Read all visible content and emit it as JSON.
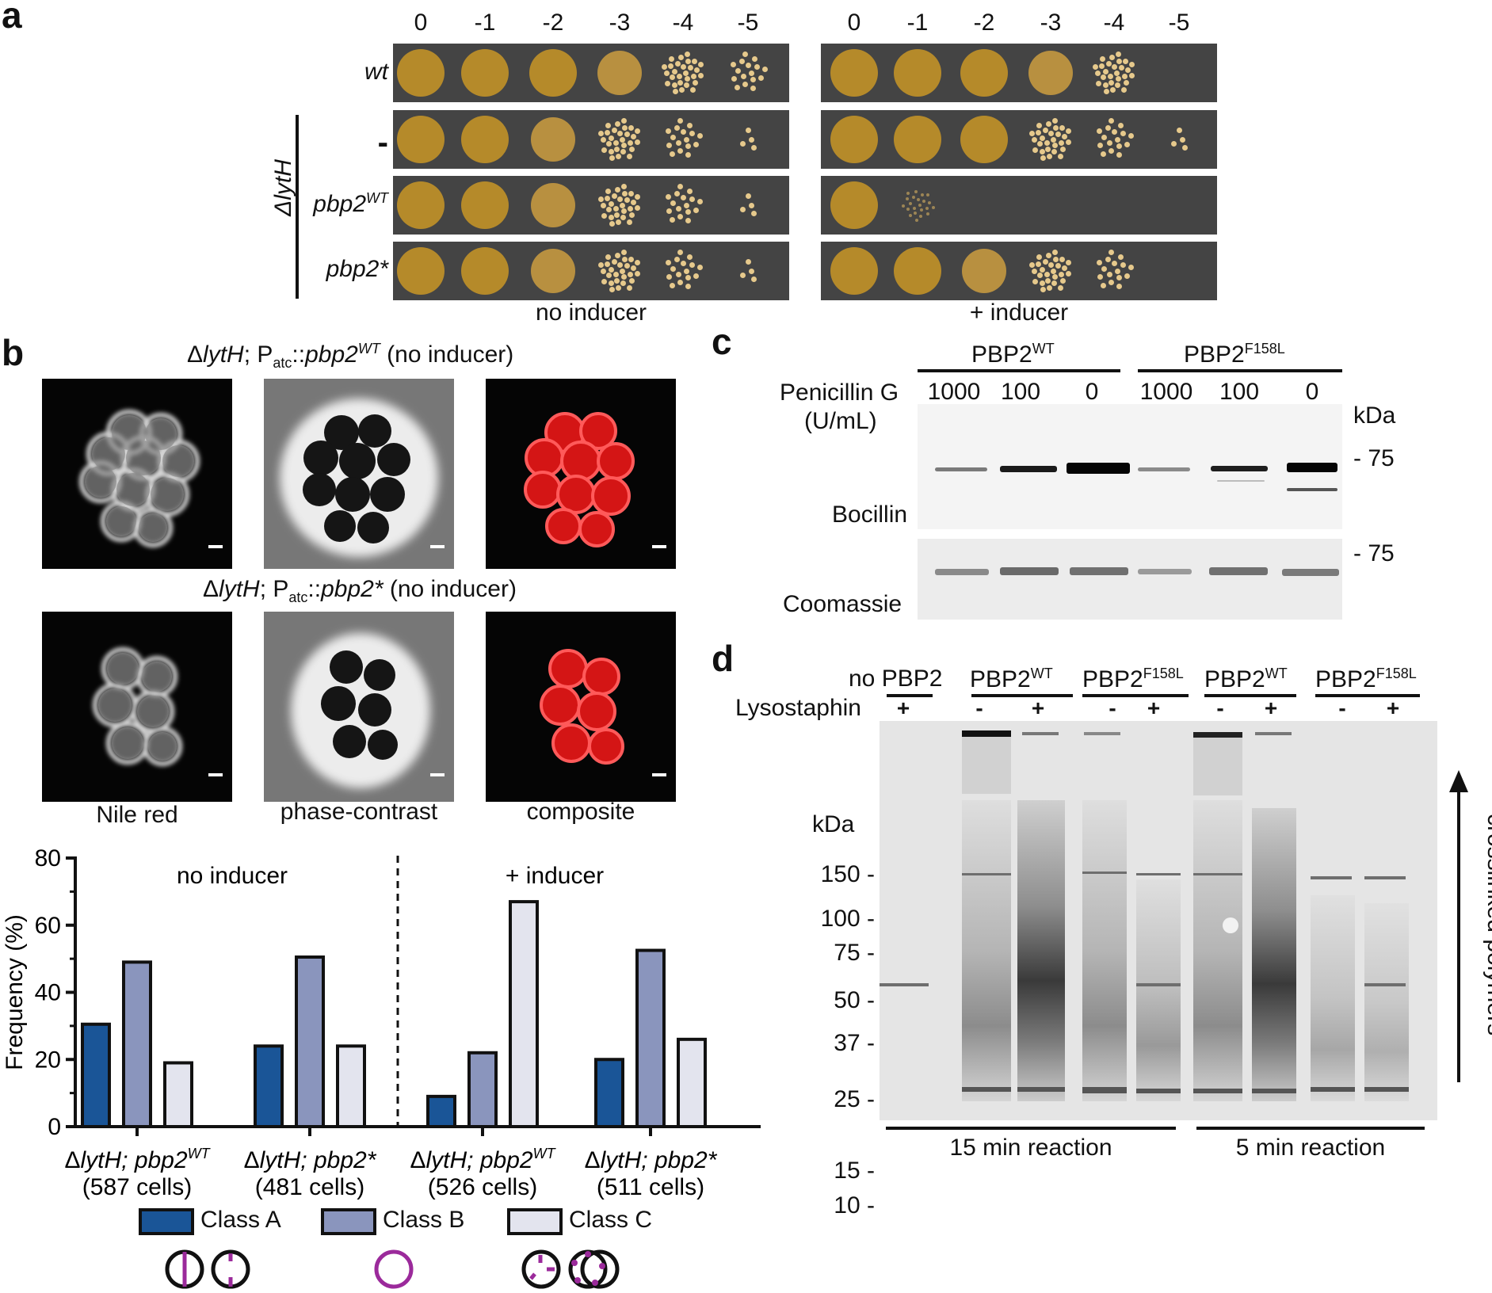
{
  "panel_a": {
    "label": "a",
    "dilutions": [
      "0",
      "-1",
      "-2",
      "-3",
      "-4",
      "-5"
    ],
    "rows": [
      {
        "text": "wt"
      },
      {
        "text": "-"
      },
      {
        "text": "pbp2",
        "sup": "WT"
      },
      {
        "text": "pbp2*"
      }
    ],
    "strain_group": "ΔlytH",
    "conditions": [
      "no inducer",
      "+ inducer"
    ]
  },
  "panel_b": {
    "label": "b",
    "titles": [
      {
        "pre": "Δ",
        "g1": "lytH",
        "mid": "; P",
        "sub": "atc",
        "sep": "::",
        "g2": "pbp2",
        "sup": "WT",
        "post": " (no inducer)"
      },
      {
        "pre": "Δ",
        "g1": "lytH",
        "mid": "; P",
        "sub": "atc",
        "sep": "::",
        "g2": "pbp2*",
        "sup": "",
        "post": " (no inducer)"
      }
    ],
    "image_captions": [
      "Nile red",
      "phase-contrast",
      "composite"
    ]
  },
  "chart_data": {
    "type": "bar",
    "ylabel": "Frequency (%)",
    "ylim": [
      0,
      80
    ],
    "yticks": [
      0,
      20,
      40,
      60,
      80
    ],
    "sections": [
      "no inducer",
      "+ inducer"
    ],
    "groups": [
      {
        "g": "ΔlytH; ",
        "gi": "pbp2",
        "sup": "WT",
        "cells": "(587 cells)"
      },
      {
        "g": "ΔlytH; ",
        "gi": "pbp2*",
        "sup": "",
        "cells": "(481 cells)"
      },
      {
        "g": "ΔlytH; ",
        "gi": "pbp2",
        "sup": "WT",
        "cells": "(526 cells)"
      },
      {
        "g": "ΔlytH; ",
        "gi": "pbp2*",
        "sup": "",
        "cells": "(511 cells)"
      }
    ],
    "series": [
      {
        "name": "Class A",
        "color": "#1a5597",
        "values": [
          30.5,
          24,
          9,
          20
        ]
      },
      {
        "name": "Class B",
        "color": "#8a95bd",
        "values": [
          49,
          50.5,
          22,
          52.5
        ]
      },
      {
        "name": "Class C",
        "color": "#e3e4ee",
        "values": [
          19,
          24,
          67,
          26
        ]
      }
    ]
  },
  "panel_c": {
    "label": "c",
    "proteins": [
      {
        "base": "PBP2",
        "sup": "WT"
      },
      {
        "base": "PBP2",
        "sup": "F158L"
      }
    ],
    "row_label_1": "Penicillin G",
    "row_label_2": "(U/mL)",
    "concentrations": [
      "1000",
      "100",
      "0",
      "1000",
      "100",
      "0"
    ],
    "unit": "kDa",
    "marker": "- 75",
    "bocillin_label": "Bocillin",
    "coomassie_label": "Coomassie"
  },
  "panel_d": {
    "label": "d",
    "groups": [
      {
        "pre": "no ",
        "base": "PBP2",
        "sup": ""
      },
      {
        "pre": "",
        "base": "PBP2",
        "sup": "WT"
      },
      {
        "pre": "",
        "base": "PBP2",
        "sup": "F158L"
      },
      {
        "pre": "",
        "base": "PBP2",
        "sup": "WT"
      },
      {
        "pre": "",
        "base": "PBP2",
        "sup": "F158L"
      }
    ],
    "lysostaphin_label": "Lysostaphin",
    "lysostaphin": [
      "+",
      "-",
      "+",
      "-",
      "+",
      "-",
      "+",
      "-",
      "+"
    ],
    "unit": "kDa",
    "markers": [
      "150 -",
      "100 -",
      "75 -",
      "50 -",
      "37 -",
      "25 -",
      "15 -",
      "10 -"
    ],
    "polymer_label": "crosslinked polymers",
    "reactions": [
      "15 min reaction",
      "5 min reaction"
    ]
  }
}
